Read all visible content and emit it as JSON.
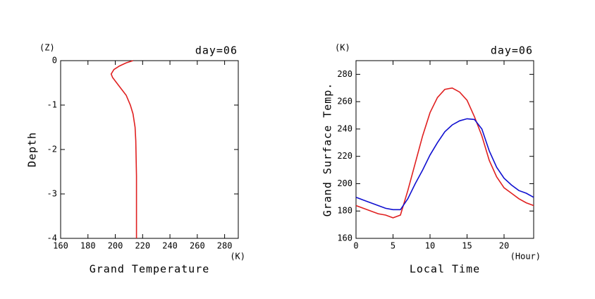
{
  "chart_data": [
    {
      "type": "line",
      "corner_label": "(Z)",
      "title": "day=06",
      "ylabel": "Depth",
      "xlabel": "Grand Temperature",
      "xunit": "(K)",
      "xlim": [
        160,
        290
      ],
      "xticks": [
        160,
        180,
        200,
        220,
        240,
        260,
        280
      ],
      "ylim": [
        -4,
        0
      ],
      "yticks": [
        0,
        -1,
        -2,
        -3,
        -4
      ],
      "series": [
        {
          "color": "#e02020",
          "x": [
            213,
            208,
            203,
            199,
            197,
            198,
            201,
            204,
            208,
            211,
            213,
            214.5,
            215,
            215.5,
            215.5
          ],
          "values": [
            0,
            -0.05,
            -0.12,
            -0.2,
            -0.3,
            -0.38,
            -0.5,
            -0.62,
            -0.78,
            -1.0,
            -1.2,
            -1.5,
            -1.8,
            -2.6,
            -4
          ]
        }
      ]
    },
    {
      "type": "line",
      "corner_label": "(K)",
      "title": "day=06",
      "ylabel": "Grand Surface Temp.",
      "xlabel": "Local Time",
      "xunit": "(Hour)",
      "xlim": [
        0,
        24
      ],
      "xticks": [
        0,
        5,
        10,
        15,
        20
      ],
      "ylim": [
        160,
        290
      ],
      "yticks": [
        160,
        180,
        200,
        220,
        240,
        260,
        280
      ],
      "x": [
        0,
        1,
        2,
        3,
        4,
        5,
        6,
        7,
        8,
        9,
        10,
        11,
        12,
        13,
        14,
        15,
        16,
        17,
        18,
        19,
        20,
        21,
        22,
        23,
        24
      ],
      "series": [
        {
          "color": "#e02020",
          "values": [
            184,
            182,
            180,
            178,
            177,
            175,
            177,
            195,
            215,
            235,
            252,
            263,
            269,
            270,
            267,
            261,
            249,
            235,
            217,
            205,
            197,
            193,
            189,
            186,
            184
          ]
        },
        {
          "color": "#1010d0",
          "values": [
            190,
            188,
            186,
            184,
            182,
            181,
            181,
            189,
            200,
            210,
            221,
            230,
            238,
            243,
            246,
            247.5,
            247,
            240,
            224,
            212,
            204,
            199,
            195,
            193,
            190
          ]
        }
      ]
    }
  ]
}
